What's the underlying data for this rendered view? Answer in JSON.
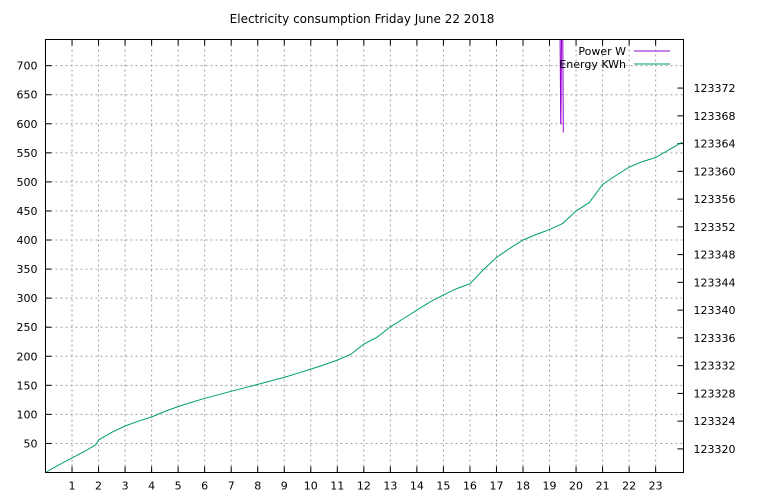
{
  "chart_data": {
    "type": "line",
    "title": "Electricity consumption Friday June 22 2018",
    "xlabel": "",
    "ylabel": "",
    "xlim": [
      0,
      24.05
    ],
    "ylim": [
      0,
      745
    ],
    "y2lim": [
      123316.6,
      123379.0
    ],
    "x_ticks": [
      "1",
      "2",
      "3",
      "4",
      "5",
      "6",
      "7",
      "8",
      "9",
      "10",
      "11",
      "12",
      "13",
      "14",
      "15",
      "16",
      "17",
      "18",
      "19",
      "20",
      "21",
      "22",
      "23"
    ],
    "y_ticks": [
      "50",
      "100",
      "150",
      "200",
      "250",
      "300",
      "350",
      "400",
      "450",
      "500",
      "550",
      "600",
      "650",
      "700"
    ],
    "y2_ticks": [
      "123320",
      "123324",
      "123328",
      "123332",
      "123336",
      "123340",
      "123344",
      "123348",
      "123352",
      "123356",
      "123360",
      "123364",
      "123368",
      "123372"
    ],
    "grid": true,
    "legend_position": "top-right",
    "series": [
      {
        "name": "Power W",
        "color": "#9400d3",
        "axis": "y",
        "x": [
          19.33,
          19.4,
          19.42,
          19.43,
          19.45,
          19.52
        ],
        "y": [
          745,
          745,
          600,
          600,
          745,
          745
        ],
        "x_2": [
          19.5,
          19.52
        ],
        "y_2": [
          745,
          585
        ]
      },
      {
        "name": "Energy KWh",
        "color": "#009e73",
        "axis": "y2",
        "x": [
          0,
          0.5,
          1,
          1.5,
          1.9,
          2.0,
          2.5,
          3,
          3.5,
          4,
          4.5,
          5,
          5.5,
          6,
          6.5,
          7,
          7.5,
          8,
          8.5,
          9,
          9.5,
          10,
          10.5,
          11,
          11.5,
          12,
          12.5,
          13,
          13.5,
          14,
          14.5,
          15,
          15.5,
          16,
          16.5,
          17,
          17.5,
          18,
          18.5,
          19,
          19.5,
          20,
          20.5,
          21,
          21.5,
          22,
          22.5,
          23,
          23.5,
          24
        ],
        "y": [
          123316.6,
          123317.7,
          123318.7,
          123319.7,
          123320.6,
          123321.3,
          123322.4,
          123323.3,
          123324.0,
          123324.6,
          123325.4,
          123326.1,
          123326.7,
          123327.3,
          123327.8,
          123328.3,
          123328.8,
          123329.3,
          123329.8,
          123330.3,
          123330.9,
          123331.5,
          123332.1,
          123332.8,
          123333.6,
          123335.1,
          123336.1,
          123337.6,
          123338.8,
          123340.0,
          123341.2,
          123342.2,
          123343.1,
          123343.8,
          123345.8,
          123347.6,
          123348.9,
          123350.1,
          123350.9,
          123351.6,
          123352.5,
          123354.3,
          123355.5,
          123358.1,
          123359.4,
          123360.6,
          123361.4,
          123362.0,
          123363.1,
          123364.2
        ]
      }
    ]
  }
}
